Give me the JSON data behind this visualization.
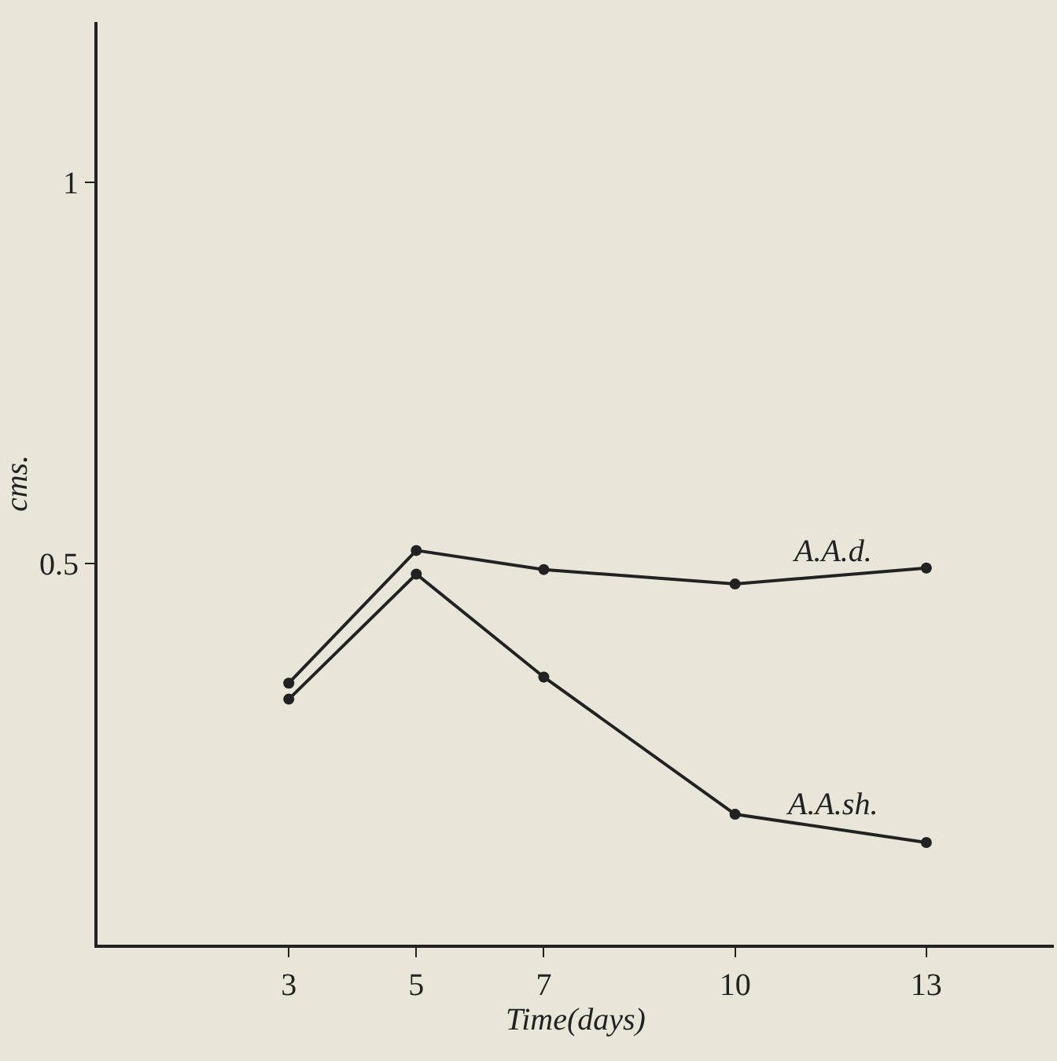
{
  "chart_data": {
    "type": "line",
    "xlabel": "Time(days)",
    "ylabel": "cms.",
    "x": [
      3,
      5,
      7,
      10,
      13
    ],
    "series": [
      {
        "name": "A.A.d.",
        "color": "#222222",
        "values": [
          0.343,
          0.517,
          0.492,
          0.473,
          0.494
        ]
      },
      {
        "name": "A.A.sh.",
        "color": "#222222",
        "values": [
          0.322,
          0.486,
          0.351,
          0.171,
          0.134
        ]
      }
    ],
    "xlim": [
      0,
      15
    ],
    "xticks": [
      3,
      5,
      7,
      10,
      13
    ],
    "ylim": [
      0,
      1.21
    ],
    "yticks": [
      0.5,
      1
    ],
    "grid": false,
    "legend": false,
    "marker": "circle",
    "line_style": "solid"
  }
}
